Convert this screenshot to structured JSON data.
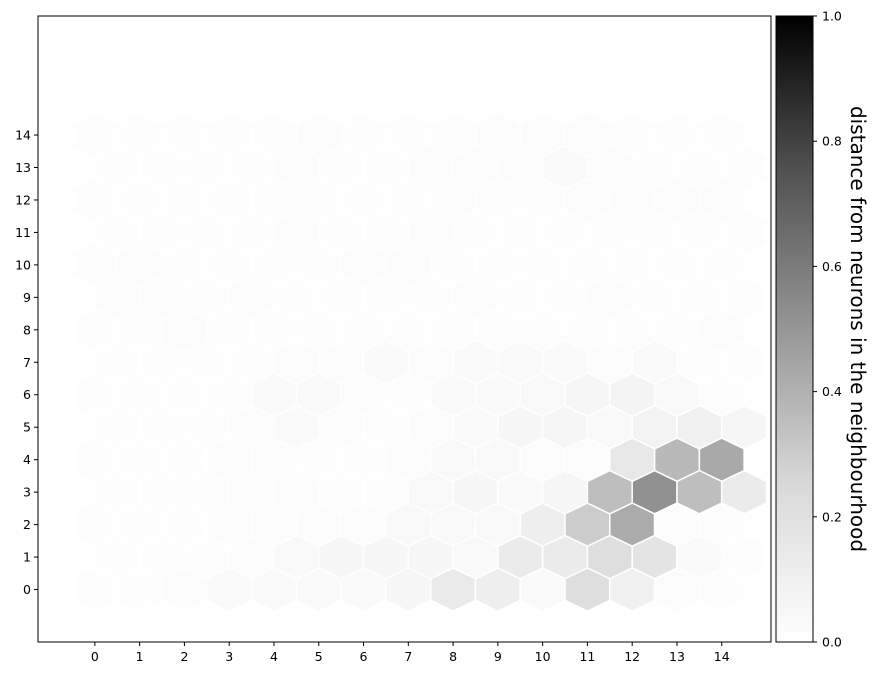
{
  "chart_data": {
    "type": "heatmap",
    "subtype": "hexagonal U-matrix (SOM)",
    "x_ticks": [
      "0",
      "1",
      "2",
      "3",
      "4",
      "5",
      "6",
      "7",
      "8",
      "9",
      "10",
      "11",
      "12",
      "13",
      "14"
    ],
    "y_ticks": [
      "0",
      "1",
      "2",
      "3",
      "4",
      "5",
      "6",
      "7",
      "8",
      "9",
      "10",
      "11",
      "12",
      "13",
      "14"
    ],
    "xlim": [
      -1.27,
      15.1
    ],
    "ylim": [
      -1.4,
      15.3
    ],
    "grid": false,
    "legend": "none",
    "colormap": "Greys",
    "colorbar": {
      "label": "distance from neurons in the neighbourhood",
      "min": 0.0,
      "max": 1.0,
      "ticks": [
        "0.0",
        "0.2",
        "0.4",
        "0.6",
        "0.8",
        "1.0"
      ],
      "position": "right"
    },
    "colors": {
      "hex_edge": "#ffffff",
      "frame": "#000000",
      "low": "#ffffff",
      "high": "#000000"
    },
    "cells": [
      [
        0,
        0,
        0.01
      ],
      [
        1,
        0,
        0.01
      ],
      [
        2,
        0,
        0.02
      ],
      [
        3,
        0,
        0.03
      ],
      [
        4,
        0,
        0.03
      ],
      [
        5,
        0,
        0.03
      ],
      [
        6,
        0,
        0.03
      ],
      [
        7,
        0,
        0.05
      ],
      [
        8,
        0,
        0.14
      ],
      [
        9,
        0,
        0.11
      ],
      [
        10,
        0,
        0.03
      ],
      [
        11,
        0,
        0.22
      ],
      [
        12,
        0,
        0.1
      ],
      [
        13,
        0,
        0.02
      ],
      [
        14,
        0,
        0.01
      ],
      [
        0,
        1,
        0.01
      ],
      [
        1,
        1,
        0.01
      ],
      [
        2,
        1,
        0.01
      ],
      [
        3,
        1,
        0.02
      ],
      [
        4,
        1,
        0.04
      ],
      [
        5,
        1,
        0.05
      ],
      [
        6,
        1,
        0.05
      ],
      [
        7,
        1,
        0.05
      ],
      [
        8,
        1,
        0.04
      ],
      [
        9,
        1,
        0.13
      ],
      [
        10,
        1,
        0.13
      ],
      [
        11,
        1,
        0.22
      ],
      [
        12,
        1,
        0.18
      ],
      [
        13,
        1,
        0.03
      ],
      [
        14,
        1,
        0.01
      ],
      [
        0,
        2,
        0.01
      ],
      [
        1,
        2,
        0.01
      ],
      [
        2,
        2,
        0.01
      ],
      [
        3,
        2,
        0.02
      ],
      [
        4,
        2,
        0.02
      ],
      [
        5,
        2,
        0.02
      ],
      [
        6,
        2,
        0.02
      ],
      [
        7,
        2,
        0.04
      ],
      [
        8,
        2,
        0.04
      ],
      [
        9,
        2,
        0.04
      ],
      [
        10,
        2,
        0.11
      ],
      [
        11,
        2,
        0.3
      ],
      [
        12,
        2,
        0.42
      ],
      [
        13,
        2,
        0.02
      ],
      [
        14,
        2,
        0.01
      ],
      [
        0,
        3,
        0.01
      ],
      [
        1,
        3,
        0.01
      ],
      [
        2,
        3,
        0.01
      ],
      [
        3,
        3,
        0.02
      ],
      [
        4,
        3,
        0.02
      ],
      [
        5,
        3,
        0.01
      ],
      [
        6,
        3,
        0.01
      ],
      [
        7,
        3,
        0.04
      ],
      [
        8,
        3,
        0.05
      ],
      [
        9,
        3,
        0.03
      ],
      [
        10,
        3,
        0.06
      ],
      [
        11,
        3,
        0.35
      ],
      [
        12,
        3,
        0.52
      ],
      [
        13,
        3,
        0.35
      ],
      [
        14,
        3,
        0.13
      ],
      [
        0,
        4,
        0.01
      ],
      [
        1,
        4,
        0.01
      ],
      [
        2,
        4,
        0.01
      ],
      [
        3,
        4,
        0.02
      ],
      [
        4,
        4,
        0.02
      ],
      [
        5,
        4,
        0.01
      ],
      [
        6,
        4,
        0.01
      ],
      [
        7,
        4,
        0.02
      ],
      [
        8,
        4,
        0.04
      ],
      [
        9,
        4,
        0.04
      ],
      [
        10,
        4,
        0.02
      ],
      [
        11,
        4,
        0.02
      ],
      [
        12,
        4,
        0.15
      ],
      [
        13,
        4,
        0.37
      ],
      [
        14,
        4,
        0.43
      ],
      [
        0,
        5,
        0.01
      ],
      [
        1,
        5,
        0.01
      ],
      [
        2,
        5,
        0.01
      ],
      [
        3,
        5,
        0.02
      ],
      [
        4,
        5,
        0.03
      ],
      [
        5,
        5,
        0.02
      ],
      [
        6,
        5,
        0.01
      ],
      [
        7,
        5,
        0.02
      ],
      [
        8,
        5,
        0.03
      ],
      [
        9,
        5,
        0.05
      ],
      [
        10,
        5,
        0.06
      ],
      [
        11,
        5,
        0.04
      ],
      [
        12,
        5,
        0.08
      ],
      [
        13,
        5,
        0.1
      ],
      [
        14,
        5,
        0.06
      ],
      [
        0,
        6,
        0.01
      ],
      [
        1,
        6,
        0.01
      ],
      [
        2,
        6,
        0.01
      ],
      [
        3,
        6,
        0.01
      ],
      [
        4,
        6,
        0.03
      ],
      [
        5,
        6,
        0.03
      ],
      [
        6,
        6,
        0.02
      ],
      [
        7,
        6,
        0.01
      ],
      [
        8,
        6,
        0.03
      ],
      [
        9,
        6,
        0.03
      ],
      [
        10,
        6,
        0.04
      ],
      [
        11,
        6,
        0.06
      ],
      [
        12,
        6,
        0.07
      ],
      [
        13,
        6,
        0.04
      ],
      [
        14,
        6,
        0.01
      ],
      [
        0,
        7,
        0.01
      ],
      [
        1,
        7,
        0.01
      ],
      [
        2,
        7,
        0.01
      ],
      [
        3,
        7,
        0.01
      ],
      [
        4,
        7,
        0.02
      ],
      [
        5,
        7,
        0.02
      ],
      [
        6,
        7,
        0.03
      ],
      [
        7,
        7,
        0.02
      ],
      [
        8,
        7,
        0.03
      ],
      [
        9,
        7,
        0.03
      ],
      [
        10,
        7,
        0.03
      ],
      [
        11,
        7,
        0.02
      ],
      [
        12,
        7,
        0.03
      ],
      [
        13,
        7,
        0.01
      ],
      [
        14,
        7,
        0.01
      ],
      [
        0,
        8,
        0.01
      ],
      [
        1,
        8,
        0.01
      ],
      [
        2,
        8,
        0.02
      ],
      [
        3,
        8,
        0.01
      ],
      [
        4,
        8,
        0.01
      ],
      [
        5,
        8,
        0.01
      ],
      [
        6,
        8,
        0.01
      ],
      [
        7,
        8,
        0.01
      ],
      [
        8,
        8,
        0.01
      ],
      [
        9,
        8,
        0.01
      ],
      [
        10,
        8,
        0.01
      ],
      [
        11,
        8,
        0.01
      ],
      [
        12,
        8,
        0.01
      ],
      [
        13,
        8,
        0.01
      ],
      [
        14,
        8,
        0.02
      ],
      [
        0,
        9,
        0.02
      ],
      [
        1,
        9,
        0.02
      ],
      [
        2,
        9,
        0.01
      ],
      [
        3,
        9,
        0.02
      ],
      [
        4,
        9,
        0.01
      ],
      [
        5,
        9,
        0.01
      ],
      [
        6,
        9,
        0.01
      ],
      [
        7,
        9,
        0.01
      ],
      [
        8,
        9,
        0.02
      ],
      [
        9,
        9,
        0.01
      ],
      [
        10,
        9,
        0.01
      ],
      [
        11,
        9,
        0.02
      ],
      [
        12,
        9,
        0.01
      ],
      [
        13,
        9,
        0.01
      ],
      [
        14,
        9,
        0.01
      ],
      [
        0,
        10,
        0.01
      ],
      [
        1,
        10,
        0.02
      ],
      [
        2,
        10,
        0.01
      ],
      [
        3,
        10,
        0.01
      ],
      [
        4,
        10,
        0.01
      ],
      [
        5,
        10,
        0.01
      ],
      [
        6,
        10,
        0.02
      ],
      [
        7,
        10,
        0.02
      ],
      [
        8,
        10,
        0.01
      ],
      [
        9,
        10,
        0.01
      ],
      [
        10,
        10,
        0.01
      ],
      [
        11,
        10,
        0.01
      ],
      [
        12,
        10,
        0.01
      ],
      [
        13,
        10,
        0.01
      ],
      [
        14,
        10,
        0.01
      ],
      [
        0,
        11,
        0.01
      ],
      [
        1,
        11,
        0.01
      ],
      [
        2,
        11,
        0.01
      ],
      [
        3,
        11,
        0.01
      ],
      [
        4,
        11,
        0.02
      ],
      [
        5,
        11,
        0.01
      ],
      [
        6,
        11,
        0.01
      ],
      [
        7,
        11,
        0.02
      ],
      [
        8,
        11,
        0.01
      ],
      [
        9,
        11,
        0.01
      ],
      [
        10,
        11,
        0.01
      ],
      [
        11,
        11,
        0.01
      ],
      [
        12,
        11,
        0.01
      ],
      [
        13,
        11,
        0.01
      ],
      [
        14,
        11,
        0.01
      ],
      [
        0,
        12,
        0.01
      ],
      [
        1,
        12,
        0.01
      ],
      [
        2,
        12,
        0.01
      ],
      [
        3,
        12,
        0.01
      ],
      [
        4,
        12,
        0.01
      ],
      [
        5,
        12,
        0.01
      ],
      [
        6,
        12,
        0.01
      ],
      [
        7,
        12,
        0.01
      ],
      [
        8,
        12,
        0.02
      ],
      [
        9,
        12,
        0.01
      ],
      [
        10,
        12,
        0.01
      ],
      [
        11,
        12,
        0.02
      ],
      [
        12,
        12,
        0.02
      ],
      [
        13,
        12,
        0.02
      ],
      [
        14,
        12,
        0.02
      ],
      [
        0,
        13,
        0.01
      ],
      [
        1,
        13,
        0.01
      ],
      [
        2,
        13,
        0.01
      ],
      [
        3,
        13,
        0.01
      ],
      [
        4,
        13,
        0.02
      ],
      [
        5,
        13,
        0.01
      ],
      [
        6,
        13,
        0.01
      ],
      [
        7,
        13,
        0.02
      ],
      [
        8,
        13,
        0.02
      ],
      [
        9,
        13,
        0.02
      ],
      [
        10,
        13,
        0.03
      ],
      [
        11,
        13,
        0.02
      ],
      [
        12,
        13,
        0.01
      ],
      [
        13,
        13,
        0.01
      ],
      [
        14,
        13,
        0.01
      ],
      [
        0,
        14,
        0.01
      ],
      [
        1,
        14,
        0.01
      ],
      [
        2,
        14,
        0.01
      ],
      [
        3,
        14,
        0.01
      ],
      [
        4,
        14,
        0.01
      ],
      [
        5,
        14,
        0.02
      ],
      [
        6,
        14,
        0.01
      ],
      [
        7,
        14,
        0.01
      ],
      [
        8,
        14,
        0.01
      ],
      [
        9,
        14,
        0.02
      ],
      [
        10,
        14,
        0.02
      ],
      [
        11,
        14,
        0.02
      ],
      [
        12,
        14,
        0.01
      ],
      [
        13,
        14,
        0.01
      ],
      [
        14,
        14,
        0.01
      ]
    ]
  }
}
